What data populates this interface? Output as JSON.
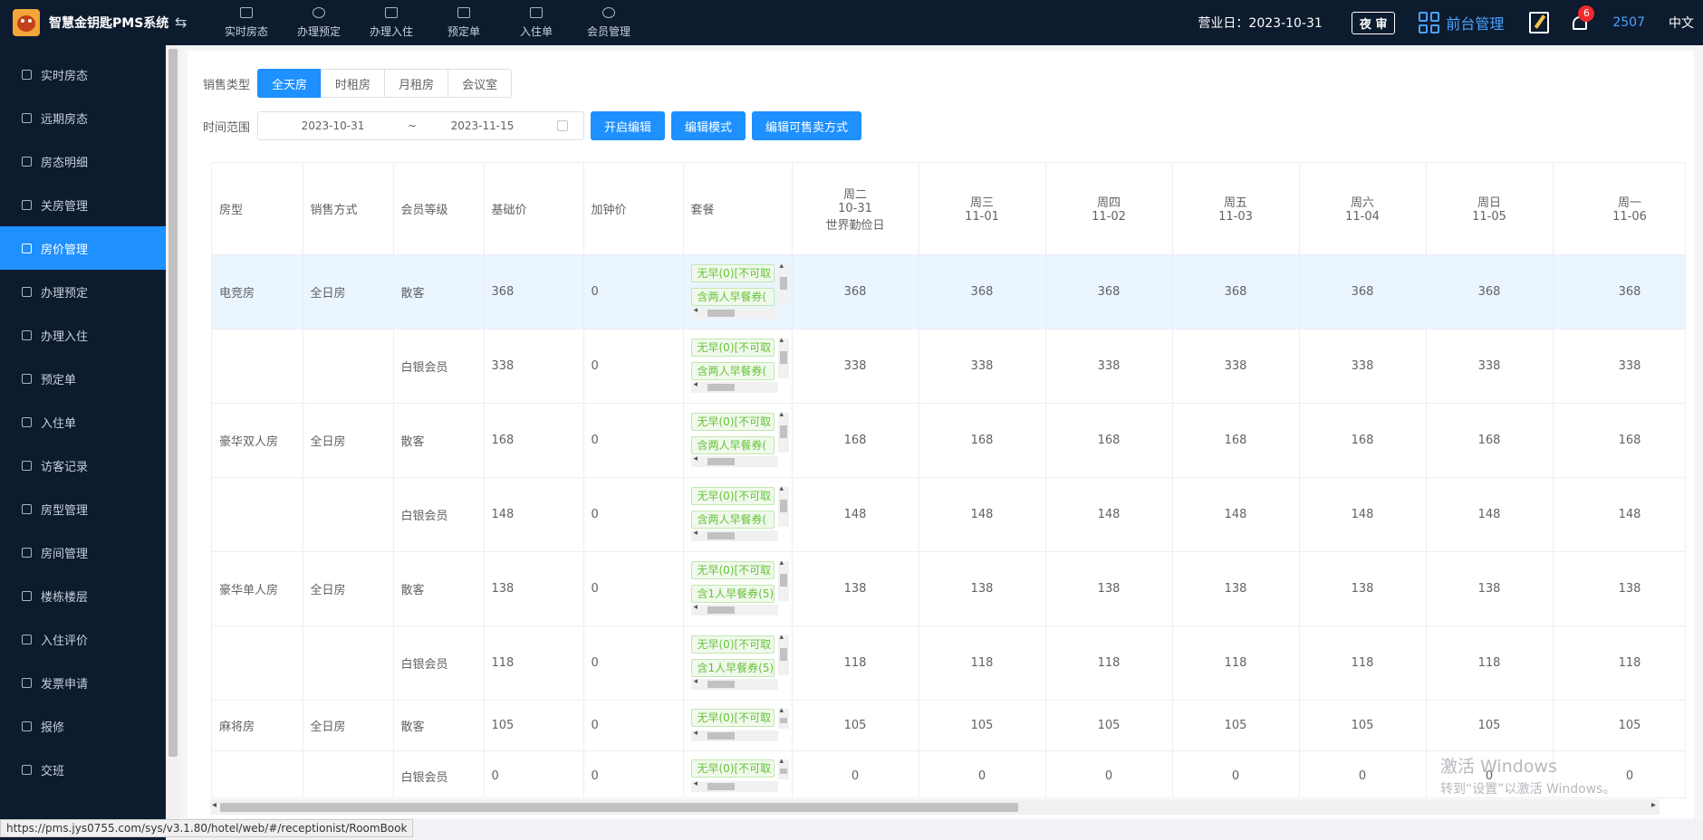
{
  "header": {
    "brand_title": "智慧金钥匙PMS系统",
    "collapse_symbol": "⇆",
    "nav": [
      "实时房态",
      "办理预定",
      "办理入住",
      "预定单",
      "入住单",
      "会员管理"
    ],
    "business_day": "营业日：2023-10-31",
    "night_audit": "夜 审",
    "front_mgmt": "前台管理",
    "notification_count": "6",
    "user_id": "2507",
    "language": "中文"
  },
  "sidebar": {
    "items": [
      "实时房态",
      "远期房态",
      "房态明细",
      "关房管理",
      "房价管理",
      "办理预定",
      "办理入住",
      "预定单",
      "入住单",
      "访客记录",
      "房型管理",
      "房间管理",
      "楼栋楼层",
      "入住评价",
      "发票申请",
      "报修",
      "交班"
    ],
    "active_index": 4,
    "collapse_symbol": "‹"
  },
  "filters": {
    "sale_type_label": "销售类型",
    "sale_types": [
      "全天房",
      "时租房",
      "月租房",
      "会议室"
    ],
    "active_sale_type": 0,
    "time_range_label": "时间范围",
    "date_start": "2023-10-31",
    "date_sep": "~",
    "date_end": "2023-11-15",
    "btn_start_edit": "开启编辑",
    "btn_edit_mode": "编辑模式",
    "btn_edit_sale_method": "编辑可售卖方式"
  },
  "table": {
    "headers": [
      "房型",
      "销售方式",
      "会员等级",
      "基础价",
      "加钟价",
      "套餐"
    ],
    "days": [
      {
        "weekday": "周二",
        "date": "10-31",
        "note": "世界勤俭日"
      },
      {
        "weekday": "周三",
        "date": "11-01",
        "note": ""
      },
      {
        "weekday": "周四",
        "date": "11-02",
        "note": ""
      },
      {
        "weekday": "周五",
        "date": "11-03",
        "note": ""
      },
      {
        "weekday": "周六",
        "date": "11-04",
        "note": ""
      },
      {
        "weekday": "周日",
        "date": "11-05",
        "note": ""
      },
      {
        "weekday": "周一",
        "date": "11-06",
        "note": ""
      }
    ],
    "rows": [
      {
        "room_type": "电竞房",
        "sale": "全日房",
        "level": "散客",
        "base": "368",
        "extra": "0",
        "pkg1": "无早(0)[不可取",
        "pkg2": "含两人早餐券(",
        "prices": [
          "368",
          "368",
          "368",
          "368",
          "368",
          "368",
          "368"
        ]
      },
      {
        "room_type": "",
        "sale": "",
        "level": "白银会员",
        "base": "338",
        "extra": "0",
        "pkg1": "无早(0)[不可取",
        "pkg2": "含两人早餐券(",
        "prices": [
          "338",
          "338",
          "338",
          "338",
          "338",
          "338",
          "338"
        ]
      },
      {
        "room_type": "豪华双人房",
        "sale": "全日房",
        "level": "散客",
        "base": "168",
        "extra": "0",
        "pkg1": "无早(0)[不可取",
        "pkg2": "含两人早餐券(",
        "prices": [
          "168",
          "168",
          "168",
          "168",
          "168",
          "168",
          "168"
        ]
      },
      {
        "room_type": "",
        "sale": "",
        "level": "白银会员",
        "base": "148",
        "extra": "0",
        "pkg1": "无早(0)[不可取",
        "pkg2": "含两人早餐券(",
        "prices": [
          "148",
          "148",
          "148",
          "148",
          "148",
          "148",
          "148"
        ]
      },
      {
        "room_type": "豪华单人房",
        "sale": "全日房",
        "level": "散客",
        "base": "138",
        "extra": "0",
        "pkg1": "无早(0)[不可取",
        "pkg2": "含1人早餐券(5)",
        "prices": [
          "138",
          "138",
          "138",
          "138",
          "138",
          "138",
          "138"
        ]
      },
      {
        "room_type": "",
        "sale": "",
        "level": "白银会员",
        "base": "118",
        "extra": "0",
        "pkg1": "无早(0)[不可取",
        "pkg2": "含1人早餐券(5)",
        "prices": [
          "118",
          "118",
          "118",
          "118",
          "118",
          "118",
          "118"
        ]
      },
      {
        "room_type": "麻将房",
        "sale": "全日房",
        "level": "散客",
        "base": "105",
        "extra": "0",
        "pkg1": "无早(0)[不可取",
        "pkg2": "",
        "prices": [
          "105",
          "105",
          "105",
          "105",
          "105",
          "105",
          "105"
        ]
      },
      {
        "room_type": "",
        "sale": "",
        "level": "白银会员",
        "base": "0",
        "extra": "0",
        "pkg1": "无早(0)[不可取",
        "pkg2": "",
        "prices": [
          "0",
          "0",
          "0",
          "0",
          "0",
          "0",
          "0"
        ]
      }
    ]
  },
  "watermark": {
    "line1": "激活 Windows",
    "line2": "转到“设置”以激活 Windows。"
  },
  "status_url": "https://pms.jys0755.com/sys/v3.1.80/hotel/web/#/receptionist/RoomBook"
}
